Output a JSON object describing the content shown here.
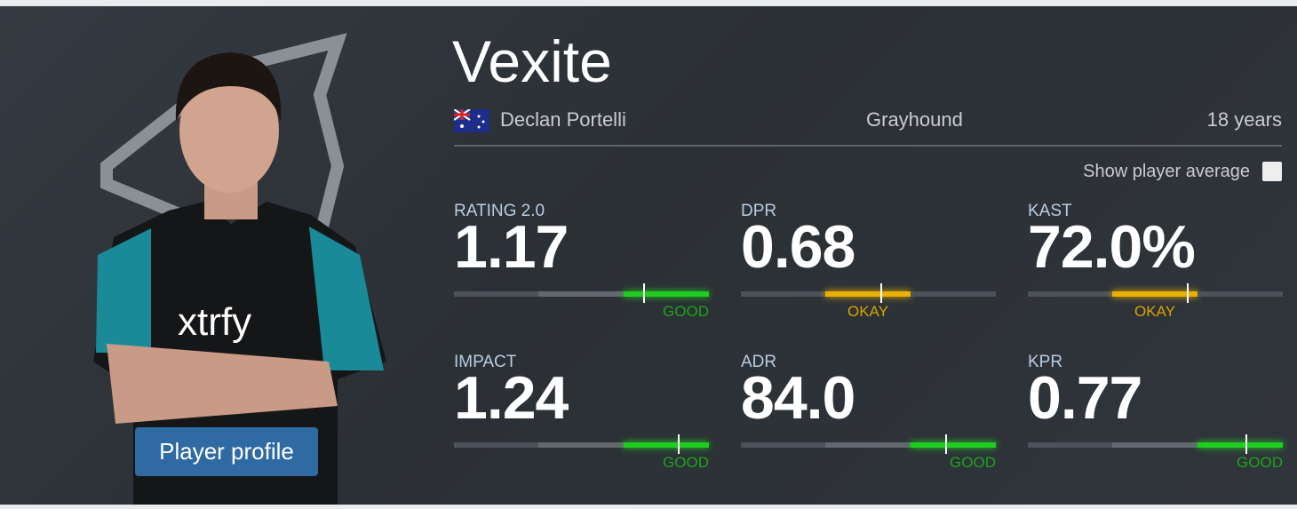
{
  "player": {
    "nickname": "Vexite",
    "real_name": "Declan Portelli",
    "team": "Grayhound",
    "age": "18 years"
  },
  "toggle_label": "Show player average",
  "button": "Player profile",
  "stats": [
    {
      "label": "RATING 2.0",
      "value": "1.17",
      "verdict": "GOOD"
    },
    {
      "label": "DPR",
      "value": "0.68",
      "verdict": "OKAY"
    },
    {
      "label": "KAST",
      "value": "72.0%",
      "verdict": "OKAY"
    },
    {
      "label": "IMPACT",
      "value": "1.24",
      "verdict": "GOOD"
    },
    {
      "label": "ADR",
      "value": "84.0",
      "verdict": "GOOD"
    },
    {
      "label": "KPR",
      "value": "0.77",
      "verdict": "GOOD"
    }
  ]
}
